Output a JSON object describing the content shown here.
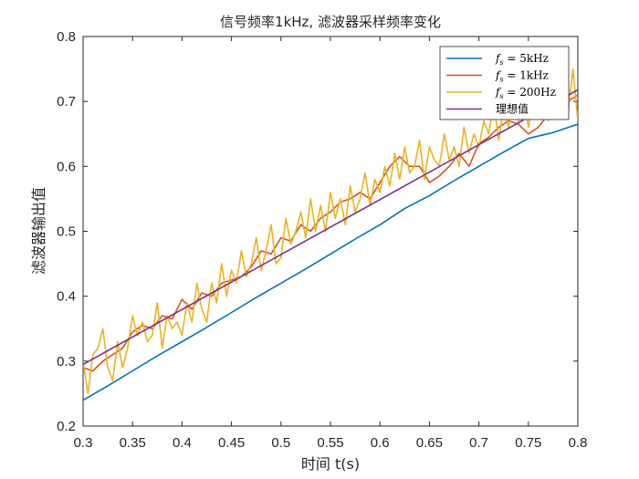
{
  "chart_data": {
    "type": "line",
    "title": "信号频率1kHz, 滤波器采样频率变化",
    "xlabel": "时间 t(s)",
    "ylabel": "滤波器输出值",
    "xlim": [
      0.3,
      0.8
    ],
    "ylim": [
      0.2,
      0.8
    ],
    "xticks": [
      0.3,
      0.35,
      0.4,
      0.45,
      0.5,
      0.55,
      0.6,
      0.65,
      0.7,
      0.75,
      0.8
    ],
    "xtick_labels": [
      "0.3",
      "0.35",
      "0.4",
      "0.45",
      "0.5",
      "0.55",
      "0.6",
      "0.65",
      "0.7",
      "0.75",
      "0.8"
    ],
    "yticks": [
      0.2,
      0.3,
      0.4,
      0.5,
      0.6,
      0.7,
      0.8
    ],
    "ytick_labels": [
      "0.2",
      "0.3",
      "0.4",
      "0.5",
      "0.6",
      "0.7",
      "0.8"
    ],
    "grid": false,
    "legend_position": "top-right",
    "series": [
      {
        "name": "fs = 5kHz",
        "label_main": "f",
        "label_sub": "s",
        "label_rest": " = 5kHz",
        "color": "#0072BD",
        "x": [
          0.3,
          0.325,
          0.35,
          0.375,
          0.4,
          0.425,
          0.45,
          0.475,
          0.5,
          0.525,
          0.55,
          0.575,
          0.6,
          0.625,
          0.65,
          0.675,
          0.7,
          0.725,
          0.75,
          0.775,
          0.8
        ],
        "y": [
          0.24,
          0.262,
          0.285,
          0.308,
          0.33,
          0.352,
          0.375,
          0.398,
          0.42,
          0.442,
          0.465,
          0.488,
          0.51,
          0.535,
          0.555,
          0.578,
          0.6,
          0.622,
          0.643,
          0.652,
          0.665
        ]
      },
      {
        "name": "fs = 1kHz",
        "label_main": "f",
        "label_sub": "s",
        "label_rest": " = 1kHz",
        "color": "#D95319",
        "x": [
          0.3,
          0.31,
          0.32,
          0.33,
          0.34,
          0.35,
          0.36,
          0.37,
          0.38,
          0.39,
          0.4,
          0.41,
          0.42,
          0.43,
          0.44,
          0.45,
          0.46,
          0.47,
          0.48,
          0.49,
          0.5,
          0.51,
          0.52,
          0.53,
          0.54,
          0.55,
          0.56,
          0.57,
          0.58,
          0.59,
          0.6,
          0.61,
          0.62,
          0.63,
          0.64,
          0.65,
          0.66,
          0.67,
          0.68,
          0.69,
          0.7,
          0.71,
          0.72,
          0.73,
          0.74,
          0.75,
          0.76,
          0.77,
          0.78,
          0.79,
          0.8
        ],
        "y": [
          0.29,
          0.285,
          0.3,
          0.31,
          0.32,
          0.345,
          0.355,
          0.35,
          0.37,
          0.365,
          0.395,
          0.38,
          0.405,
          0.4,
          0.42,
          0.425,
          0.43,
          0.445,
          0.47,
          0.465,
          0.49,
          0.485,
          0.51,
          0.5,
          0.52,
          0.53,
          0.545,
          0.55,
          0.56,
          0.55,
          0.575,
          0.6,
          0.615,
          0.6,
          0.6,
          0.575,
          0.585,
          0.6,
          0.62,
          0.6,
          0.635,
          0.645,
          0.66,
          0.67,
          0.665,
          0.65,
          0.66,
          0.68,
          0.69,
          0.7,
          0.71
        ]
      },
      {
        "name": "fs = 200Hz",
        "label_main": "f",
        "label_sub": "s",
        "label_rest": " = 200Hz",
        "color": "#EDB120",
        "x": [
          0.3,
          0.305,
          0.31,
          0.315,
          0.32,
          0.325,
          0.33,
          0.335,
          0.34,
          0.345,
          0.35,
          0.355,
          0.36,
          0.365,
          0.37,
          0.375,
          0.38,
          0.385,
          0.39,
          0.395,
          0.4,
          0.405,
          0.41,
          0.415,
          0.42,
          0.425,
          0.43,
          0.435,
          0.44,
          0.445,
          0.45,
          0.455,
          0.46,
          0.465,
          0.47,
          0.475,
          0.48,
          0.485,
          0.49,
          0.495,
          0.5,
          0.505,
          0.51,
          0.515,
          0.52,
          0.525,
          0.53,
          0.535,
          0.54,
          0.545,
          0.55,
          0.555,
          0.56,
          0.565,
          0.57,
          0.575,
          0.58,
          0.585,
          0.59,
          0.595,
          0.6,
          0.605,
          0.61,
          0.615,
          0.62,
          0.625,
          0.63,
          0.635,
          0.64,
          0.645,
          0.65,
          0.655,
          0.66,
          0.665,
          0.67,
          0.675,
          0.68,
          0.685,
          0.69,
          0.695,
          0.7,
          0.705,
          0.71,
          0.715,
          0.72,
          0.725,
          0.73,
          0.735,
          0.74,
          0.745,
          0.75,
          0.755,
          0.76,
          0.765,
          0.77,
          0.775,
          0.78,
          0.785,
          0.79,
          0.795,
          0.8
        ],
        "y": [
          0.3,
          0.25,
          0.31,
          0.32,
          0.35,
          0.29,
          0.27,
          0.33,
          0.29,
          0.32,
          0.37,
          0.34,
          0.36,
          0.33,
          0.34,
          0.39,
          0.32,
          0.37,
          0.35,
          0.36,
          0.34,
          0.39,
          0.36,
          0.42,
          0.38,
          0.36,
          0.42,
          0.39,
          0.45,
          0.4,
          0.44,
          0.42,
          0.47,
          0.43,
          0.45,
          0.49,
          0.44,
          0.47,
          0.51,
          0.45,
          0.46,
          0.52,
          0.48,
          0.5,
          0.53,
          0.49,
          0.55,
          0.5,
          0.54,
          0.5,
          0.56,
          0.52,
          0.55,
          0.51,
          0.57,
          0.53,
          0.55,
          0.59,
          0.54,
          0.58,
          0.56,
          0.6,
          0.57,
          0.62,
          0.58,
          0.63,
          0.59,
          0.6,
          0.64,
          0.58,
          0.63,
          0.61,
          0.6,
          0.65,
          0.61,
          0.63,
          0.6,
          0.66,
          0.62,
          0.65,
          0.63,
          0.67,
          0.65,
          0.7,
          0.64,
          0.69,
          0.66,
          0.72,
          0.67,
          0.71,
          0.66,
          0.7,
          0.68,
          0.73,
          0.67,
          0.72,
          0.69,
          0.7,
          0.68,
          0.75,
          0.67
        ]
      },
      {
        "name": "理想值",
        "label_main": "理想值",
        "label_sub": "",
        "label_rest": "",
        "color": "#7E2F8E",
        "x": [
          0.3,
          0.8
        ],
        "y": [
          0.295,
          0.718
        ]
      }
    ]
  }
}
